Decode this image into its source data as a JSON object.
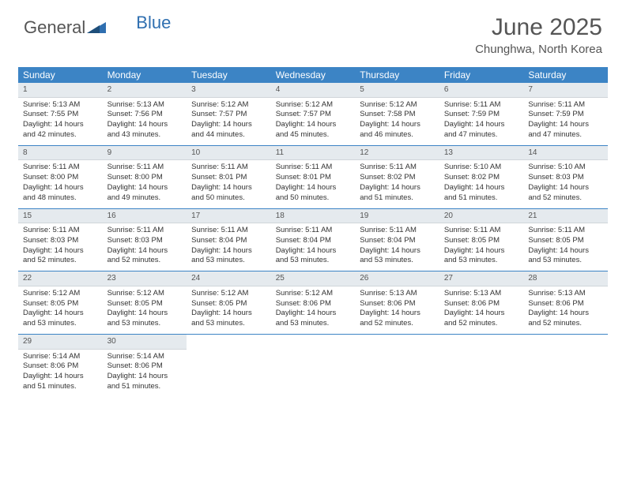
{
  "brand": {
    "word1": "General",
    "word2": "Blue"
  },
  "colors": {
    "header_bg": "#3c84c5",
    "header_text": "#ffffff",
    "daynum_bg": "#e5eaee",
    "sep_color": "#3c84c5",
    "text": "#333333",
    "logo_blue": "#2f6fb0"
  },
  "title": "June 2025",
  "subtitle": "Chunghwa, North Korea",
  "weekdays": [
    "Sunday",
    "Monday",
    "Tuesday",
    "Wednesday",
    "Thursday",
    "Friday",
    "Saturday"
  ],
  "days": [
    {
      "n": "1",
      "sr": "5:13 AM",
      "ss": "7:55 PM",
      "dl": "14 hours and 42 minutes."
    },
    {
      "n": "2",
      "sr": "5:13 AM",
      "ss": "7:56 PM",
      "dl": "14 hours and 43 minutes."
    },
    {
      "n": "3",
      "sr": "5:12 AM",
      "ss": "7:57 PM",
      "dl": "14 hours and 44 minutes."
    },
    {
      "n": "4",
      "sr": "5:12 AM",
      "ss": "7:57 PM",
      "dl": "14 hours and 45 minutes."
    },
    {
      "n": "5",
      "sr": "5:12 AM",
      "ss": "7:58 PM",
      "dl": "14 hours and 46 minutes."
    },
    {
      "n": "6",
      "sr": "5:11 AM",
      "ss": "7:59 PM",
      "dl": "14 hours and 47 minutes."
    },
    {
      "n": "7",
      "sr": "5:11 AM",
      "ss": "7:59 PM",
      "dl": "14 hours and 47 minutes."
    },
    {
      "n": "8",
      "sr": "5:11 AM",
      "ss": "8:00 PM",
      "dl": "14 hours and 48 minutes."
    },
    {
      "n": "9",
      "sr": "5:11 AM",
      "ss": "8:00 PM",
      "dl": "14 hours and 49 minutes."
    },
    {
      "n": "10",
      "sr": "5:11 AM",
      "ss": "8:01 PM",
      "dl": "14 hours and 50 minutes."
    },
    {
      "n": "11",
      "sr": "5:11 AM",
      "ss": "8:01 PM",
      "dl": "14 hours and 50 minutes."
    },
    {
      "n": "12",
      "sr": "5:11 AM",
      "ss": "8:02 PM",
      "dl": "14 hours and 51 minutes."
    },
    {
      "n": "13",
      "sr": "5:10 AM",
      "ss": "8:02 PM",
      "dl": "14 hours and 51 minutes."
    },
    {
      "n": "14",
      "sr": "5:10 AM",
      "ss": "8:03 PM",
      "dl": "14 hours and 52 minutes."
    },
    {
      "n": "15",
      "sr": "5:11 AM",
      "ss": "8:03 PM",
      "dl": "14 hours and 52 minutes."
    },
    {
      "n": "16",
      "sr": "5:11 AM",
      "ss": "8:03 PM",
      "dl": "14 hours and 52 minutes."
    },
    {
      "n": "17",
      "sr": "5:11 AM",
      "ss": "8:04 PM",
      "dl": "14 hours and 53 minutes."
    },
    {
      "n": "18",
      "sr": "5:11 AM",
      "ss": "8:04 PM",
      "dl": "14 hours and 53 minutes."
    },
    {
      "n": "19",
      "sr": "5:11 AM",
      "ss": "8:04 PM",
      "dl": "14 hours and 53 minutes."
    },
    {
      "n": "20",
      "sr": "5:11 AM",
      "ss": "8:05 PM",
      "dl": "14 hours and 53 minutes."
    },
    {
      "n": "21",
      "sr": "5:11 AM",
      "ss": "8:05 PM",
      "dl": "14 hours and 53 minutes."
    },
    {
      "n": "22",
      "sr": "5:12 AM",
      "ss": "8:05 PM",
      "dl": "14 hours and 53 minutes."
    },
    {
      "n": "23",
      "sr": "5:12 AM",
      "ss": "8:05 PM",
      "dl": "14 hours and 53 minutes."
    },
    {
      "n": "24",
      "sr": "5:12 AM",
      "ss": "8:05 PM",
      "dl": "14 hours and 53 minutes."
    },
    {
      "n": "25",
      "sr": "5:12 AM",
      "ss": "8:06 PM",
      "dl": "14 hours and 53 minutes."
    },
    {
      "n": "26",
      "sr": "5:13 AM",
      "ss": "8:06 PM",
      "dl": "14 hours and 52 minutes."
    },
    {
      "n": "27",
      "sr": "5:13 AM",
      "ss": "8:06 PM",
      "dl": "14 hours and 52 minutes."
    },
    {
      "n": "28",
      "sr": "5:13 AM",
      "ss": "8:06 PM",
      "dl": "14 hours and 52 minutes."
    },
    {
      "n": "29",
      "sr": "5:14 AM",
      "ss": "8:06 PM",
      "dl": "14 hours and 51 minutes."
    },
    {
      "n": "30",
      "sr": "5:14 AM",
      "ss": "8:06 PM",
      "dl": "14 hours and 51 minutes."
    }
  ],
  "labels": {
    "sunrise": "Sunrise: ",
    "sunset": "Sunset: ",
    "daylight": "Daylight: "
  },
  "layout": {
    "first_weekday_index": 0,
    "total_cells": 35
  }
}
